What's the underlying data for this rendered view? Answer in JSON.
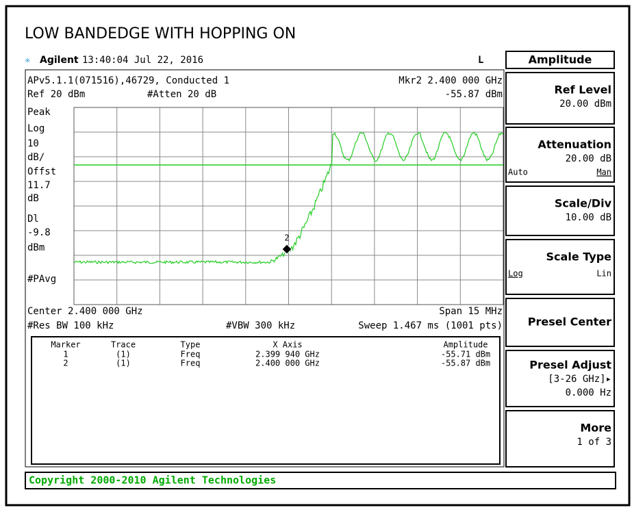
{
  "title": "LOW BANDEDGE WITH HOPPING ON",
  "header": {
    "brand": "Agilent",
    "timestamp": "13:40:04  Jul 22, 2016",
    "flag": "L"
  },
  "info": {
    "line1_left": "APv5.1.1(071516),46729, Conducted 1",
    "marker_freq": "Mkr2  2.400 000 GHz",
    "ref": "Ref 20 dBm",
    "atten": "#Atten 20 dB",
    "marker_amp": "-55.87 dBm"
  },
  "left_labels": [
    "Peak",
    "Log",
    "10",
    "dB/",
    "Offst",
    "11.7",
    "dB",
    "Dl",
    "-9.8",
    "dBm",
    "#PAvg"
  ],
  "marker_label": "2",
  "footer": {
    "center": "Center 2.400 000 GHz",
    "span": "Span 15 MHz",
    "rbw": "#Res BW 100 kHz",
    "vbw": "#VBW 300 kHz",
    "sweep": "Sweep 1.467 ms (1001 pts)"
  },
  "marker_table": {
    "header": [
      "Marker",
      "Trace",
      "Type",
      "X Axis",
      "Amplitude"
    ],
    "rows": [
      [
        "1",
        "(1)",
        "Freq",
        "2.399 940 GHz",
        "-55.71 dBm"
      ],
      [
        "2",
        "(1)",
        "Freq",
        "2.400 000 GHz",
        "-55.87 dBm"
      ]
    ]
  },
  "menu": {
    "title": "Amplitude",
    "keys": [
      {
        "label": "Ref Level",
        "value": "20.00 dBm"
      },
      {
        "label": "Attenuation",
        "value": "20.00 dB",
        "left": "Auto",
        "right": "Man"
      },
      {
        "label": "Scale/Div",
        "value": "10.00 dB"
      },
      {
        "label": "Scale Type",
        "left": "Log",
        "right": "Lin"
      },
      {
        "label": "Presel Center"
      },
      {
        "label": "Presel Adjust",
        "value": "[3-26 GHz]▸",
        "value2": "0.000  Hz"
      },
      {
        "label": "More",
        "value": "1 of 3"
      }
    ]
  },
  "copyright": "Copyright 2000-2010 Agilent Technologies"
}
